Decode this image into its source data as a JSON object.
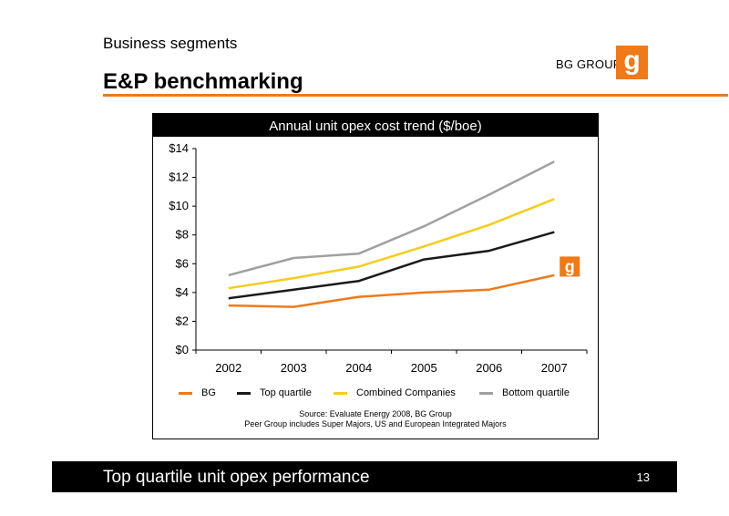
{
  "header": {
    "section": "Business segments",
    "title": "E&P benchmarking"
  },
  "logo": {
    "text": "BG GROUP",
    "mark": "g",
    "color": "#ee7a1a"
  },
  "chart_panel": {
    "heading": "Annual unit opex cost trend ($/boe)",
    "source_line1": "Source: Evaluate Energy 2008, BG Group",
    "source_line2": "Peer Group includes Super Majors, US and European Integrated Majors"
  },
  "chart_data": {
    "type": "line",
    "title": "Annual unit opex cost trend ($/boe)",
    "x": [
      "2002",
      "2003",
      "2004",
      "2005",
      "2006",
      "2007"
    ],
    "ylim": [
      0,
      14
    ],
    "yticks": [
      0,
      2,
      4,
      6,
      8,
      10,
      12,
      14
    ],
    "ytick_labels": [
      "$0",
      "$2",
      "$4",
      "$6",
      "$8",
      "$10",
      "$12",
      "$14"
    ],
    "grid": false,
    "legend_position": "bottom",
    "series": [
      {
        "name": "BG",
        "color": "#ee7a1a",
        "values": [
          3.1,
          3.0,
          3.7,
          4.0,
          4.2,
          5.2
        ]
      },
      {
        "name": "Top quartile",
        "color": "#1a1a1a",
        "values": [
          3.6,
          4.2,
          4.8,
          6.3,
          6.9,
          8.2
        ]
      },
      {
        "name": "Combined Companies",
        "color": "#f5cc1e",
        "values": [
          4.3,
          5.0,
          5.8,
          7.2,
          8.7,
          10.5
        ]
      },
      {
        "name": "Bottom quartile",
        "color": "#a0a0a0",
        "values": [
          5.2,
          6.4,
          6.7,
          8.6,
          10.8,
          13.1
        ]
      }
    ],
    "annotation_icon": "bg-logo-icon"
  },
  "footer": {
    "text": "Top quartile unit opex performance",
    "page": "13"
  }
}
